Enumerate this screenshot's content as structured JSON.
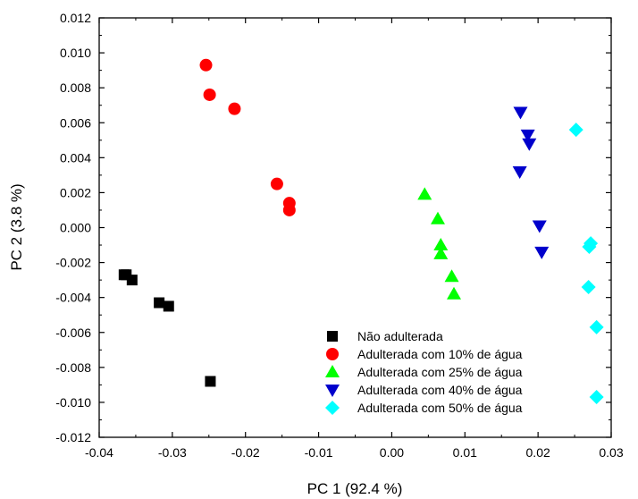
{
  "chart_data": {
    "type": "scatter",
    "xlabel": "PC 1 (92.4 %)",
    "ylabel": "PC 2 (3.8 %)",
    "xlim": [
      -0.04,
      0.03
    ],
    "ylim": [
      -0.012,
      0.012
    ],
    "x_ticks": [
      "-0.04",
      "-0.03",
      "-0.02",
      "-0.01",
      "0.00",
      "0.01",
      "0.02",
      "0.03"
    ],
    "x_tick_values": [
      -0.04,
      -0.03,
      -0.02,
      -0.01,
      0.0,
      0.01,
      0.02,
      0.03
    ],
    "y_ticks": [
      "-0.012",
      "-0.010",
      "-0.008",
      "-0.006",
      "-0.004",
      "-0.002",
      "0.000",
      "0.002",
      "0.004",
      "0.006",
      "0.008",
      "0.010",
      "0.012"
    ],
    "y_tick_values": [
      -0.012,
      -0.01,
      -0.008,
      -0.006,
      -0.004,
      -0.002,
      0.0,
      0.002,
      0.004,
      0.006,
      0.008,
      0.01,
      0.012
    ],
    "grid": false,
    "legend_position": "bottom-right",
    "series": [
      {
        "name": "Não adulterada",
        "marker": "square",
        "color": "#000000",
        "points": [
          [
            -0.0366,
            -0.0027
          ],
          [
            -0.0363,
            -0.0027
          ],
          [
            -0.0355,
            -0.003
          ],
          [
            -0.0318,
            -0.0043
          ],
          [
            -0.0305,
            -0.0045
          ],
          [
            -0.0248,
            -0.0088
          ]
        ]
      },
      {
        "name": "Adulterada com 10% de água",
        "marker": "circle",
        "color": "#ff0000",
        "points": [
          [
            -0.0254,
            0.0093
          ],
          [
            -0.0249,
            0.0076
          ],
          [
            -0.0215,
            0.0068
          ],
          [
            -0.0157,
            0.0025
          ],
          [
            -0.014,
            0.0014
          ],
          [
            -0.014,
            0.001
          ]
        ]
      },
      {
        "name": "Adulterada com 25% de água",
        "marker": "triangle-up",
        "color": "#00ff00",
        "points": [
          [
            0.0045,
            0.0019
          ],
          [
            0.0063,
            0.0005
          ],
          [
            0.0067,
            -0.001
          ],
          [
            0.0067,
            -0.0015
          ],
          [
            0.0082,
            -0.0028
          ],
          [
            0.0085,
            -0.0038
          ]
        ]
      },
      {
        "name": "Adulterada com 40% de água",
        "marker": "triangle-down",
        "color": "#0000cc",
        "points": [
          [
            0.0176,
            0.0066
          ],
          [
            0.0186,
            0.0053
          ],
          [
            0.0188,
            0.0048
          ],
          [
            0.0175,
            0.0032
          ],
          [
            0.0202,
            0.0001
          ],
          [
            0.0205,
            -0.0014
          ]
        ]
      },
      {
        "name": "Adulterada com 50% de água",
        "marker": "diamond",
        "color": "#00ffff",
        "points": [
          [
            0.0252,
            0.0056
          ],
          [
            0.0272,
            -0.0009
          ],
          [
            0.027,
            -0.0011
          ],
          [
            0.0269,
            -0.0034
          ],
          [
            0.028,
            -0.0057
          ],
          [
            0.028,
            -0.0097
          ]
        ]
      }
    ]
  }
}
